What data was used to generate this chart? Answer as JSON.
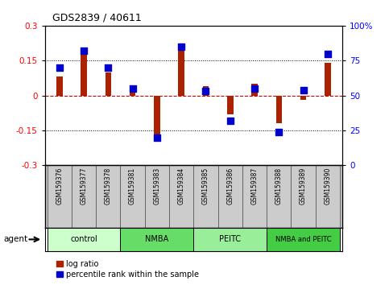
{
  "title": "GDS2839 / 40611",
  "samples": [
    "GSM159376",
    "GSM159377",
    "GSM159378",
    "GSM159381",
    "GSM159383",
    "GSM159384",
    "GSM159385",
    "GSM159386",
    "GSM159387",
    "GSM159388",
    "GSM159389",
    "GSM159390"
  ],
  "log_ratio": [
    0.08,
    0.2,
    0.1,
    0.04,
    -0.2,
    0.22,
    0.04,
    -0.08,
    0.05,
    -0.12,
    -0.02,
    0.14
  ],
  "percentile": [
    70,
    82,
    70,
    55,
    20,
    85,
    53,
    32,
    55,
    24,
    54,
    80
  ],
  "groups": [
    {
      "label": "control",
      "start": 0,
      "end": 3,
      "color": "#ccffcc"
    },
    {
      "label": "NMBA",
      "start": 3,
      "end": 6,
      "color": "#66dd66"
    },
    {
      "label": "PEITC",
      "start": 6,
      "end": 9,
      "color": "#99ee99"
    },
    {
      "label": "NMBA and PEITC",
      "start": 9,
      "end": 12,
      "color": "#44cc44"
    }
  ],
  "bar_color": "#aa2200",
  "dot_color": "#0000cc",
  "ylim": [
    -0.3,
    0.3
  ],
  "y2lim": [
    0,
    100
  ],
  "yticks": [
    -0.3,
    -0.15,
    0,
    0.15,
    0.3
  ],
  "y2ticks": [
    0,
    25,
    50,
    75,
    100
  ],
  "hline_color": "#cc0000",
  "hline_dotted_vals": [
    0.15,
    -0.15
  ],
  "bg_color": "#ffffff",
  "plot_bg": "#ffffff",
  "agent_label": "agent",
  "legend_items": [
    {
      "label": "log ratio",
      "color": "#aa2200"
    },
    {
      "label": "percentile rank within the sample",
      "color": "#0000cc"
    }
  ],
  "gsm_bg": "#cccccc",
  "gsm_border": "#888888"
}
